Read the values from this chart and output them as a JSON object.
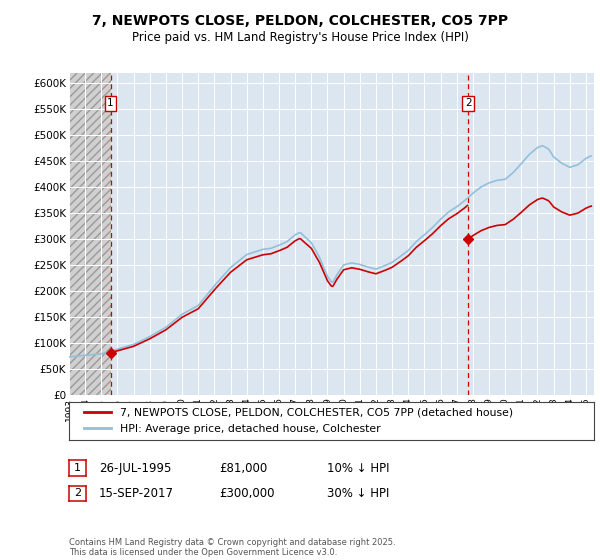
{
  "title": "7, NEWPOTS CLOSE, PELDON, COLCHESTER, CO5 7PP",
  "subtitle": "Price paid vs. HM Land Registry's House Price Index (HPI)",
  "background_color": "#ffffff",
  "plot_bg_color": "#dce6f1",
  "grid_color": "#ffffff",
  "ylim": [
    0,
    620000
  ],
  "yticks": [
    0,
    50000,
    100000,
    150000,
    200000,
    250000,
    300000,
    350000,
    400000,
    450000,
    500000,
    550000,
    600000
  ],
  "xlim_start": 1993.0,
  "xlim_end": 2025.5,
  "transaction1": {
    "date_num": 1995.57,
    "price": 81000,
    "label": "1"
  },
  "transaction2": {
    "date_num": 2017.71,
    "price": 300000,
    "label": "2"
  },
  "legend_line1": "7, NEWPOTS CLOSE, PELDON, COLCHESTER, CO5 7PP (detached house)",
  "legend_line2": "HPI: Average price, detached house, Colchester",
  "footnote": "Contains HM Land Registry data © Crown copyright and database right 2025.\nThis data is licensed under the Open Government Licence v3.0.",
  "hpi_color": "#92c0dc",
  "price_color": "#cc0000",
  "vline_color": "#cc0000"
}
